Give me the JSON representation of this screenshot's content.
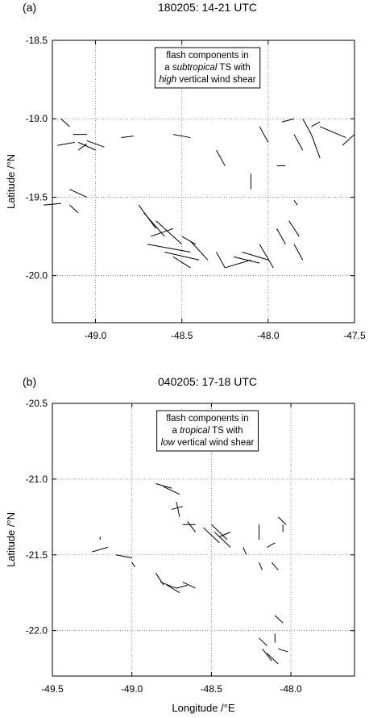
{
  "chart_data": [
    {
      "type": "segments",
      "panel_label": "(a)",
      "title": "180205: 14-21 UTC",
      "y_label": "Latitude /°N",
      "annotation": [
        [
          "flash components in"
        ],
        [
          "a ",
          {
            "text": "subtropical",
            "italic": true
          },
          " TS with"
        ],
        [
          {
            "text": "high",
            "italic": true
          },
          " vertical wind shear"
        ]
      ],
      "xlim": [
        -49.25,
        -47.5
      ],
      "ylim": [
        -20.3,
        -18.5
      ],
      "xticks": [
        {
          "value": -49,
          "label": "-49.0"
        },
        -48.5,
        {
          "value": -48,
          "label": "-48.0"
        },
        -47.5
      ],
      "yticks": [
        -18.5,
        {
          "value": -19,
          "label": "-19.0"
        },
        -19.5,
        {
          "value": -20,
          "label": "-20.0"
        }
      ],
      "grid": true,
      "color": "#000000",
      "segments": [
        {
          "x": [
            -49.2,
            -49.15
          ],
          "y": [
            -19.0,
            -19.05
          ]
        },
        {
          "x": [
            -49.13,
            -49.05
          ],
          "y": [
            -19.1,
            -19.1
          ]
        },
        {
          "x": [
            -49.22,
            -49.12
          ],
          "y": [
            -19.17,
            -19.15
          ]
        },
        {
          "x": [
            -49.1,
            -49.0
          ],
          "y": [
            -19.15,
            -19.2
          ]
        },
        {
          "x": [
            -49.05,
            -48.95
          ],
          "y": [
            -19.14,
            -19.18
          ]
        },
        {
          "x": [
            -49.1,
            -49.05
          ],
          "y": [
            -19.2,
            -19.16
          ]
        },
        {
          "x": [
            -48.85,
            -48.78
          ],
          "y": [
            -19.12,
            -19.11
          ]
        },
        {
          "x": [
            -49.15,
            -49.05
          ],
          "y": [
            -19.45,
            -19.5
          ]
        },
        {
          "x": [
            -49.3,
            -49.2
          ],
          "y": [
            -19.55,
            -19.54
          ]
        },
        {
          "x": [
            -49.15,
            -49.1
          ],
          "y": [
            -19.55,
            -19.6
          ]
        },
        {
          "x": [
            -48.75,
            -48.65
          ],
          "y": [
            -19.55,
            -19.7
          ]
        },
        {
          "x": [
            -48.72,
            -48.6
          ],
          "y": [
            -19.6,
            -19.75
          ]
        },
        {
          "x": [
            -48.65,
            -48.5
          ],
          "y": [
            -19.65,
            -19.8
          ]
        },
        {
          "x": [
            -48.68,
            -48.55
          ],
          "y": [
            -19.75,
            -19.7
          ]
        },
        {
          "x": [
            -48.7,
            -48.45
          ],
          "y": [
            -19.8,
            -19.85
          ]
        },
        {
          "x": [
            -48.6,
            -48.4
          ],
          "y": [
            -19.85,
            -19.9
          ]
        },
        {
          "x": [
            -48.55,
            -48.45
          ],
          "y": [
            -19.88,
            -19.95
          ]
        },
        {
          "x": [
            -48.5,
            -48.42
          ],
          "y": [
            -19.75,
            -19.8
          ]
        },
        {
          "x": [
            -48.45,
            -48.35
          ],
          "y": [
            -19.78,
            -19.9
          ]
        },
        {
          "x": [
            -48.3,
            -48.25
          ],
          "y": [
            -19.85,
            -19.95
          ]
        },
        {
          "x": [
            -48.25,
            -48.1
          ],
          "y": [
            -19.95,
            -19.9
          ]
        },
        {
          "x": [
            -48.2,
            -48.05
          ],
          "y": [
            -19.88,
            -19.92
          ]
        },
        {
          "x": [
            -48.15,
            -48.0
          ],
          "y": [
            -19.85,
            -19.9
          ]
        },
        {
          "x": [
            -48.05,
            -47.97
          ],
          "y": [
            -19.8,
            -19.95
          ]
        },
        {
          "x": [
            -47.95,
            -47.9
          ],
          "y": [
            -19.7,
            -19.8
          ]
        },
        {
          "x": [
            -47.85,
            -47.8
          ],
          "y": [
            -19.8,
            -19.9
          ]
        },
        {
          "x": [
            -47.88,
            -47.82
          ],
          "y": [
            -19.65,
            -19.75
          ]
        },
        {
          "x": [
            -47.85,
            -47.83
          ],
          "y": [
            -19.52,
            -19.55
          ]
        },
        {
          "x": [
            -47.92,
            -47.85
          ],
          "y": [
            -19.02,
            -19.0
          ]
        },
        {
          "x": [
            -47.8,
            -47.75
          ],
          "y": [
            -19.0,
            -19.1
          ]
        },
        {
          "x": [
            -47.75,
            -47.7
          ],
          "y": [
            -19.05,
            -19.02
          ]
        },
        {
          "x": [
            -47.7,
            -47.55
          ],
          "y": [
            -19.05,
            -19.12
          ]
        },
        {
          "x": [
            -47.75,
            -47.7
          ],
          "y": [
            -19.1,
            -19.25
          ]
        },
        {
          "x": [
            -47.85,
            -47.8
          ],
          "y": [
            -19.1,
            -19.2
          ]
        },
        {
          "x": [
            -47.5,
            -47.57
          ],
          "y": [
            -19.1,
            -19.17
          ]
        },
        {
          "x": [
            -48.05,
            -48.0
          ],
          "y": [
            -19.05,
            -19.15
          ]
        },
        {
          "x": [
            -48.3,
            -48.25
          ],
          "y": [
            -19.2,
            -19.3
          ]
        },
        {
          "x": [
            -48.1,
            -48.1
          ],
          "y": [
            -19.35,
            -19.45
          ]
        },
        {
          "x": [
            -47.95,
            -47.9
          ],
          "y": [
            -19.3,
            -19.3
          ]
        },
        {
          "x": [
            -48.55,
            -48.45
          ],
          "y": [
            -19.1,
            -19.12
          ]
        }
      ]
    },
    {
      "type": "segments",
      "panel_label": "(b)",
      "title": "040205: 17-18 UTC",
      "y_label": "Latitude /°N",
      "x_label": "Longitude /°E",
      "annotation": [
        [
          "flash components in"
        ],
        [
          "a ",
          {
            "text": "tropical",
            "italic": true
          },
          " TS with"
        ],
        [
          {
            "text": "low",
            "italic": true
          },
          " vertical wind shear"
        ]
      ],
      "xlim": [
        -49.5,
        -47.6
      ],
      "ylim": [
        -22.3,
        -20.5
      ],
      "xticks": [
        -49.5,
        {
          "value": -49,
          "label": "-49.0"
        },
        -48.5,
        {
          "value": -48,
          "label": "-48.0"
        }
      ],
      "yticks": [
        -20.5,
        {
          "value": -21,
          "label": "-21.0"
        },
        -21.5,
        {
          "value": -22,
          "label": "-22.0"
        }
      ],
      "grid": true,
      "color": "#000000",
      "segments": [
        {
          "x": [
            -48.85,
            -48.75
          ],
          "y": [
            -21.03,
            -21.06
          ]
        },
        {
          "x": [
            -48.8,
            -48.7
          ],
          "y": [
            -21.05,
            -21.1
          ]
        },
        {
          "x": [
            -48.72,
            -48.7
          ],
          "y": [
            -21.15,
            -21.25
          ]
        },
        {
          "x": [
            -48.75,
            -48.68
          ],
          "y": [
            -21.2,
            -21.18
          ]
        },
        {
          "x": [
            -48.65,
            -48.6
          ],
          "y": [
            -21.28,
            -21.35
          ]
        },
        {
          "x": [
            -48.68,
            -48.6
          ],
          "y": [
            -21.3,
            -21.3
          ]
        },
        {
          "x": [
            -48.5,
            -48.4
          ],
          "y": [
            -21.3,
            -21.4
          ]
        },
        {
          "x": [
            -48.48,
            -48.38
          ],
          "y": [
            -21.35,
            -21.45
          ]
        },
        {
          "x": [
            -48.45,
            -48.38
          ],
          "y": [
            -21.38,
            -21.35
          ]
        },
        {
          "x": [
            -48.55,
            -48.45
          ],
          "y": [
            -21.32,
            -21.42
          ]
        },
        {
          "x": [
            -48.3,
            -48.28
          ],
          "y": [
            -21.45,
            -21.5
          ]
        },
        {
          "x": [
            -48.2,
            -48.2
          ],
          "y": [
            -21.3,
            -21.4
          ]
        },
        {
          "x": [
            -48.15,
            -48.1
          ],
          "y": [
            -21.45,
            -21.42
          ]
        },
        {
          "x": [
            -48.08,
            -48.03
          ],
          "y": [
            -21.25,
            -21.3
          ]
        },
        {
          "x": [
            -48.05,
            -48.05
          ],
          "y": [
            -21.3,
            -21.35
          ]
        },
        {
          "x": [
            -48.12,
            -48.08
          ],
          "y": [
            -21.55,
            -21.6
          ]
        },
        {
          "x": [
            -48.2,
            -48.18
          ],
          "y": [
            -21.55,
            -21.6
          ]
        },
        {
          "x": [
            -49.25,
            -49.15
          ],
          "y": [
            -21.48,
            -21.45
          ]
        },
        {
          "x": [
            -49.2,
            -49.2
          ],
          "y": [
            -21.38,
            -21.4
          ]
        },
        {
          "x": [
            -49.1,
            -49.0
          ],
          "y": [
            -21.5,
            -21.52
          ]
        },
        {
          "x": [
            -49.0,
            -48.98
          ],
          "y": [
            -21.55,
            -21.58
          ]
        },
        {
          "x": [
            -48.85,
            -48.8
          ],
          "y": [
            -21.62,
            -21.7
          ]
        },
        {
          "x": [
            -48.82,
            -48.72
          ],
          "y": [
            -21.68,
            -21.72
          ]
        },
        {
          "x": [
            -48.78,
            -48.7
          ],
          "y": [
            -21.7,
            -21.75
          ]
        },
        {
          "x": [
            -48.68,
            -48.6
          ],
          "y": [
            -21.68,
            -21.72
          ]
        },
        {
          "x": [
            -48.72,
            -48.65
          ],
          "y": [
            -21.72,
            -21.7
          ]
        },
        {
          "x": [
            -48.1,
            -48.05
          ],
          "y": [
            -21.9,
            -21.95
          ]
        },
        {
          "x": [
            -48.2,
            -48.15
          ],
          "y": [
            -22.05,
            -22.1
          ]
        },
        {
          "x": [
            -48.18,
            -48.12
          ],
          "y": [
            -22.12,
            -22.2
          ]
        },
        {
          "x": [
            -48.15,
            -48.08
          ],
          "y": [
            -22.15,
            -22.22
          ]
        },
        {
          "x": [
            -48.08,
            -48.02
          ],
          "y": [
            -22.12,
            -22.14
          ]
        },
        {
          "x": [
            -48.1,
            -48.1
          ],
          "y": [
            -22.02,
            -22.08
          ]
        }
      ]
    }
  ]
}
